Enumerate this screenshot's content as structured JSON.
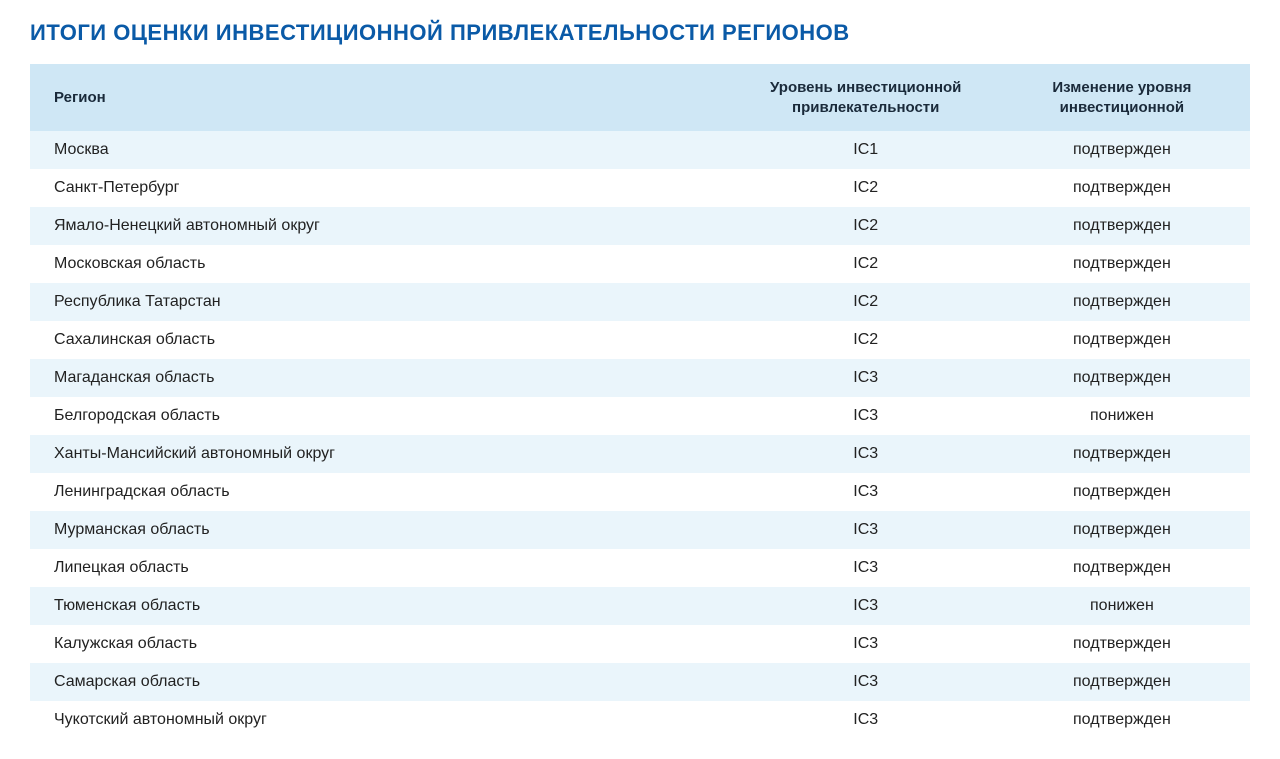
{
  "title": "ИТОГИ ОЦЕНКИ ИНВЕСТИЦИОННОЙ ПРИВЛЕКАТЕЛЬНОСТИ РЕГИОНОВ",
  "colors": {
    "title": "#0a5aa7",
    "header_bg": "#cfe7f5",
    "header_text": "#1a2a3a",
    "row_even_bg": "#eaf5fb",
    "row_odd_bg": "#ffffff",
    "cell_text": "#222222",
    "background": "#ffffff"
  },
  "fonts": {
    "title_size": 22,
    "header_size": 15,
    "cell_size": 16
  },
  "table": {
    "columns": [
      {
        "key": "region",
        "label": "Регион",
        "align": "left",
        "width_pct": 58
      },
      {
        "key": "level",
        "label": "Уровень инвестиционной привлекательности",
        "align": "center",
        "width_pct": 21
      },
      {
        "key": "change",
        "label": "Изменение уровня инвестиционной",
        "align": "center",
        "width_pct": 21
      }
    ],
    "rows": [
      {
        "region": "Москва",
        "level": "IC1",
        "change": "подтвержден"
      },
      {
        "region": "Санкт-Петербург",
        "level": "IC2",
        "change": "подтвержден"
      },
      {
        "region": "Ямало-Ненецкий автономный округ",
        "level": "IC2",
        "change": "подтвержден"
      },
      {
        "region": "Московская область",
        "level": "IC2",
        "change": "подтвержден"
      },
      {
        "region": "Республика Татарстан",
        "level": "IC2",
        "change": "подтвержден"
      },
      {
        "region": "Сахалинская область",
        "level": "IC2",
        "change": "подтвержден"
      },
      {
        "region": "Магаданская область",
        "level": "IC3",
        "change": "подтвержден"
      },
      {
        "region": "Белгородская область",
        "level": "IC3",
        "change": "понижен"
      },
      {
        "region": "Ханты-Мансийский автономный округ",
        "level": "IC3",
        "change": "подтвержден"
      },
      {
        "region": "Ленинградская область",
        "level": "IC3",
        "change": "подтвержден"
      },
      {
        "region": "Мурманская область",
        "level": "IC3",
        "change": "подтвержден"
      },
      {
        "region": "Липецкая область",
        "level": "IC3",
        "change": "подтвержден"
      },
      {
        "region": "Тюменская область",
        "level": "IC3",
        "change": "понижен"
      },
      {
        "region": "Калужская область",
        "level": "IC3",
        "change": "подтвержден"
      },
      {
        "region": "Самарская область",
        "level": "IC3",
        "change": "подтвержден"
      },
      {
        "region": "Чукотский автономный округ",
        "level": "IC3",
        "change": "подтвержден"
      }
    ]
  }
}
